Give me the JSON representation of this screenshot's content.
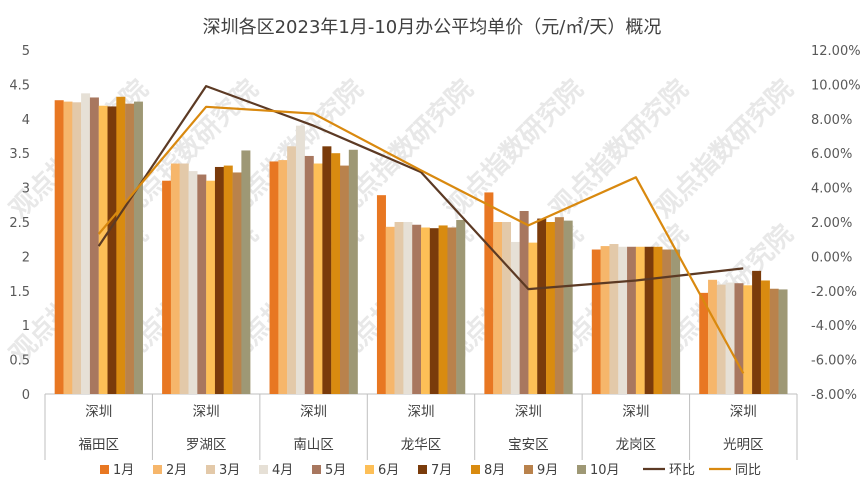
{
  "chart_data": {
    "type": "bar",
    "title": "深圳各区2023年1月-10月办公平均单价（元/㎡/天）概况",
    "categories": [
      {
        "line1": "深圳",
        "line2": "福田区"
      },
      {
        "line1": "深圳",
        "line2": "罗湖区"
      },
      {
        "line1": "深圳",
        "line2": "南山区"
      },
      {
        "line1": "深圳",
        "line2": "龙华区"
      },
      {
        "line1": "深圳",
        "line2": "宝安区"
      },
      {
        "line1": "深圳",
        "line2": "龙岗区"
      },
      {
        "line1": "深圳",
        "line2": "光明区"
      }
    ],
    "ylim_left": [
      0,
      5
    ],
    "ylim_right": [
      -8,
      12
    ],
    "yticks_left": [
      "0",
      "0.5",
      "1",
      "1.5",
      "2",
      "2.5",
      "3",
      "3.5",
      "4",
      "4.5",
      "5"
    ],
    "yticks_right": [
      "-8.00%",
      "-6.00%",
      "-4.00%",
      "-2.00%",
      "0.00%",
      "2.00%",
      "4.00%",
      "6.00%",
      "8.00%",
      "10.00%",
      "12.00%"
    ],
    "series": [
      {
        "name": "1月",
        "color": "#E87722",
        "values": [
          4.27,
          3.1,
          3.38,
          2.89,
          2.93,
          2.1,
          1.47
        ]
      },
      {
        "name": "2月",
        "color": "#F6B66B",
        "values": [
          4.25,
          3.35,
          3.4,
          2.43,
          2.5,
          2.15,
          1.66
        ]
      },
      {
        "name": "3月",
        "color": "#E3C9A9",
        "values": [
          4.24,
          3.35,
          3.6,
          2.5,
          2.5,
          2.18,
          1.59
        ]
      },
      {
        "name": "4月",
        "color": "#E6E0D6",
        "values": [
          4.37,
          3.24,
          3.9,
          2.5,
          2.21,
          2.14,
          1.62
        ]
      },
      {
        "name": "5月",
        "color": "#A8775F",
        "values": [
          4.31,
          3.19,
          3.46,
          2.46,
          2.66,
          2.14,
          1.61
        ]
      },
      {
        "name": "6月",
        "color": "#FDBF57",
        "values": [
          4.19,
          3.1,
          3.35,
          2.42,
          2.2,
          2.14,
          1.58
        ]
      },
      {
        "name": "7月",
        "color": "#7A3B0B",
        "values": [
          4.18,
          3.3,
          3.6,
          2.41,
          2.55,
          2.14,
          1.79
        ]
      },
      {
        "name": "8月",
        "color": "#D98B10",
        "values": [
          4.32,
          3.32,
          3.5,
          2.45,
          2.5,
          2.14,
          1.65
        ]
      },
      {
        "name": "9月",
        "color": "#B9824C",
        "values": [
          4.22,
          3.22,
          3.32,
          2.42,
          2.57,
          2.1,
          1.53
        ]
      },
      {
        "name": "10月",
        "color": "#9E9875",
        "values": [
          4.25,
          3.54,
          3.55,
          2.53,
          2.52,
          2.1,
          1.52
        ]
      }
    ],
    "line_series": [
      {
        "name": "环比",
        "color": "#5C3A24",
        "axis": "right",
        "values": [
          0.6,
          9.9,
          7.6,
          4.9,
          -1.9,
          -1.4,
          -0.7
        ]
      },
      {
        "name": "同比",
        "color": "#D9890F",
        "axis": "right",
        "values": [
          1.3,
          8.7,
          8.3,
          5.0,
          1.8,
          4.6,
          -6.8
        ]
      }
    ],
    "grid": false,
    "legend_position": "bottom"
  },
  "watermark": "观点指数研究院"
}
